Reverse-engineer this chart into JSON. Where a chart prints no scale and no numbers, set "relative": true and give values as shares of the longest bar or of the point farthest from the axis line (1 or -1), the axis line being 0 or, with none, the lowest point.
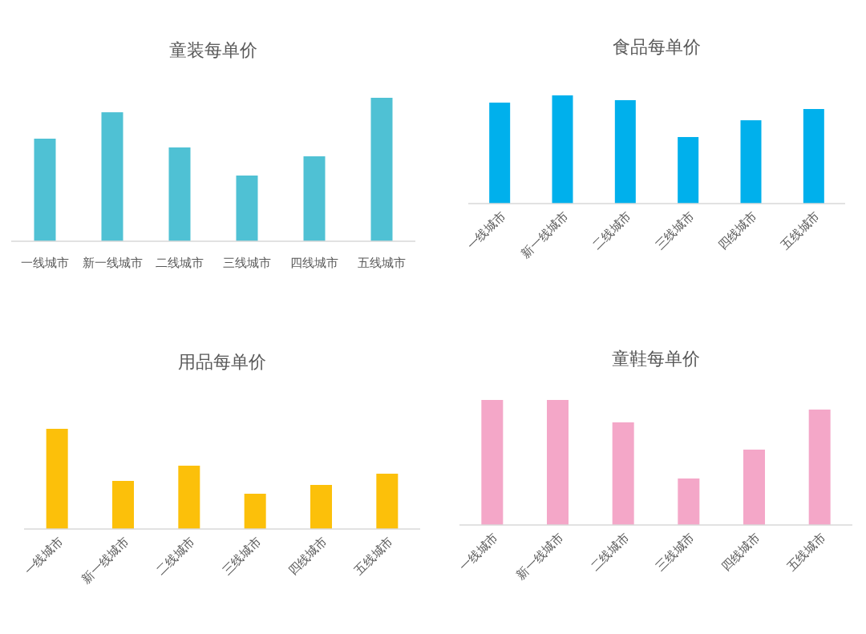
{
  "chart_data": [
    {
      "type": "bar",
      "title": "童装每单价",
      "categories": [
        "一线城市",
        "新一线城市",
        "二线城市",
        "三线城市",
        "四线城市",
        "五线城市"
      ],
      "values": [
        0.715,
        0.899,
        0.654,
        0.458,
        0.592,
        1
      ],
      "color": "#4fc1d4",
      "relative": true
    },
    {
      "type": "bar",
      "title": "食品每单价",
      "categories": [
        "一线城市",
        "新一线城市",
        "二线城市",
        "三线城市",
        "四线城市",
        "五线城市"
      ],
      "values": [
        0.933,
        1,
        0.956,
        0.615,
        0.77,
        0.874
      ],
      "color": "#00b0ec",
      "relative": true
    },
    {
      "type": "bar",
      "title": "用品每单价",
      "categories": [
        "一线城市",
        "新一线城市",
        "二线城市",
        "三线城市",
        "四线城市",
        "五线城市"
      ],
      "values": [
        1,
        0.48,
        0.632,
        0.352,
        0.44,
        0.552
      ],
      "color": "#fcc00a",
      "relative": true
    },
    {
      "type": "bar",
      "title": "童鞋每单价",
      "categories": [
        "一线城市",
        "新一线城市",
        "二线城市",
        "三线城市",
        "四线城市",
        "五线城市"
      ],
      "values": [
        1,
        1,
        0.821,
        0.372,
        0.603,
        0.923
      ],
      "color": "#f4a7c8",
      "relative": true
    }
  ]
}
